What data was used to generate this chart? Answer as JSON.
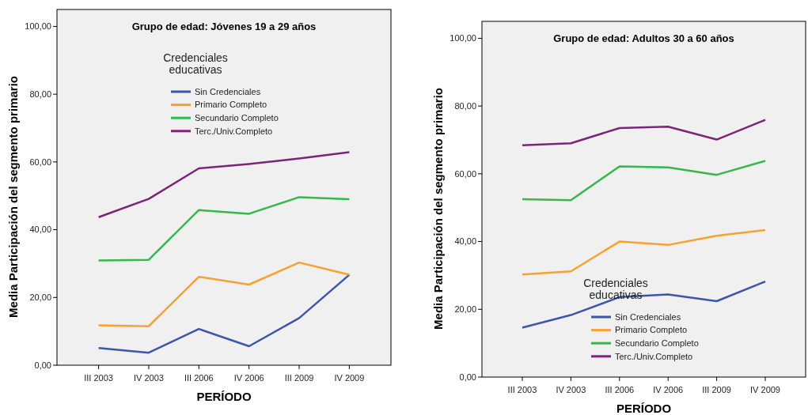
{
  "chart_data": [
    {
      "type": "line",
      "title": "Grupo de edad: Jóvenes 19 a 29 años",
      "xlabel": "PERÍODO",
      "ylabel": "Media Participación del segmento primario",
      "legend_title": "Credenciales educativas",
      "legend": "top",
      "categories": [
        "III 2003",
        "IV 2003",
        "III 2006",
        "IV 2006",
        "III 2009",
        "IV 2009"
      ],
      "ylim": [
        0,
        105
      ],
      "yticks": [
        {
          "value": 0,
          "label": "0,00"
        },
        {
          "value": 20,
          "label": "20,00"
        },
        {
          "value": 40,
          "label": "40,00"
        },
        {
          "value": 60,
          "label": "60,00"
        },
        {
          "value": 80,
          "label": "80,00"
        },
        {
          "value": 100,
          "label": "100,00"
        }
      ],
      "grid": false,
      "series": [
        {
          "name": "Sin Credenciales",
          "color": "#3e55a8",
          "values": [
            5.1,
            3.7,
            10.7,
            5.6,
            13.9,
            26.7
          ]
        },
        {
          "name": "Primario Completo",
          "color": "#f8a12e",
          "values": [
            11.8,
            11.5,
            26.1,
            23.8,
            30.3,
            26.7
          ]
        },
        {
          "name": "Secundario Completo",
          "color": "#33b84a",
          "values": [
            30.9,
            31.1,
            45.8,
            44.7,
            49.6,
            49.0
          ]
        },
        {
          "name": "Terc./Univ.Completo",
          "color": "#7b2579",
          "values": [
            43.7,
            49.1,
            58.1,
            59.4,
            61.0,
            62.9
          ]
        }
      ]
    },
    {
      "type": "line",
      "title": "Grupo de edad: Adultos 30 a 60 años",
      "xlabel": "PERÍODO",
      "ylabel": "Media Participación del segmento primario",
      "legend_title": "Credenciales educativas",
      "legend": "bottom",
      "categories": [
        "III 2003",
        "IV 2003",
        "III 2006",
        "IV 2006",
        "III 2009",
        "IV 2009"
      ],
      "ylim": [
        0,
        105
      ],
      "yticks": [
        {
          "value": 0,
          "label": "0,00"
        },
        {
          "value": 20,
          "label": "20,00"
        },
        {
          "value": 40,
          "label": "40,00"
        },
        {
          "value": 60,
          "label": "60,00"
        },
        {
          "value": 80,
          "label": "80,00"
        },
        {
          "value": 100,
          "label": "100,00"
        }
      ],
      "grid": false,
      "series": [
        {
          "name": "Sin Credenciales",
          "color": "#3e55a8",
          "values": [
            14.6,
            18.3,
            23.6,
            24.4,
            22.4,
            28.2
          ]
        },
        {
          "name": "Primario Completo",
          "color": "#f8a12e",
          "values": [
            30.3,
            31.2,
            40.0,
            39.0,
            41.7,
            43.4
          ]
        },
        {
          "name": "Secundario Completo",
          "color": "#33b84a",
          "values": [
            52.5,
            52.2,
            62.2,
            61.9,
            59.7,
            63.8
          ]
        },
        {
          "name": "Terc./Univ.Completo",
          "color": "#7b2579",
          "values": [
            68.4,
            69.0,
            73.5,
            73.9,
            70.1,
            75.9
          ]
        }
      ]
    }
  ]
}
